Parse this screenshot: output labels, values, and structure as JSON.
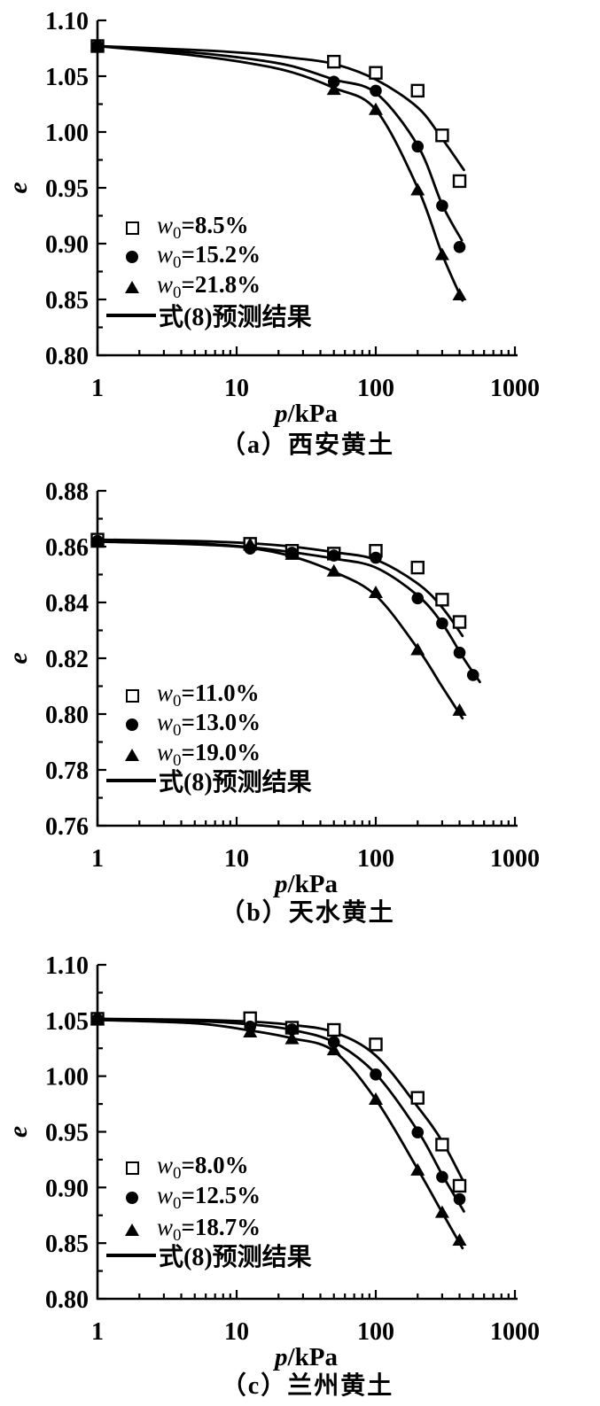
{
  "colors": {
    "ink": "#000000",
    "background": "#ffffff"
  },
  "chart_data": [
    {
      "id": "a",
      "type": "line",
      "caption": "（a）西安黄土",
      "xlabel": {
        "italic": "p",
        "rest": "/kPa"
      },
      "ylabel": "e",
      "x_axis": {
        "scale": "log",
        "min": 1,
        "max": 1000,
        "major_ticks": [
          1,
          10,
          100,
          1000
        ],
        "tick_labels": [
          "1",
          "10",
          "100",
          "1000"
        ]
      },
      "y_axis": {
        "min": 0.8,
        "max": 1.1,
        "major_step": 0.05,
        "minor_step": 0.025,
        "tick_labels": [
          "0.80",
          "0.85",
          "0.90",
          "0.95",
          "1.00",
          "1.05",
          "1.10"
        ]
      },
      "series": [
        {
          "name": "w0=8.5%",
          "marker": "square-open",
          "points": [
            [
              1,
              1.077
            ],
            [
              50,
              1.063
            ],
            [
              100,
              1.053
            ],
            [
              200,
              1.037
            ],
            [
              300,
              0.997
            ],
            [
              400,
              0.956
            ]
          ]
        },
        {
          "name": "w0=15.2%",
          "marker": "circle-filled",
          "points": [
            [
              1,
              1.077
            ],
            [
              50,
              1.045
            ],
            [
              100,
              1.037
            ],
            [
              200,
              0.987
            ],
            [
              300,
              0.934
            ],
            [
              400,
              0.897
            ]
          ]
        },
        {
          "name": "w0=21.8%",
          "marker": "triangle-filled",
          "points": [
            [
              1,
              1.077
            ],
            [
              50,
              1.038
            ],
            [
              100,
              1.02
            ],
            [
              200,
              0.948
            ],
            [
              300,
              0.89
            ],
            [
              400,
              0.854
            ]
          ]
        }
      ],
      "fit_label": "式(8)预测结果",
      "fit_curves": [
        [
          [
            1,
            1.077
          ],
          [
            5,
            1.0735
          ],
          [
            12.5,
            1.0705
          ],
          [
            25,
            1.0665
          ],
          [
            50,
            1.061
          ],
          [
            100,
            1.047
          ],
          [
            200,
            1.022
          ],
          [
            300,
            0.994
          ],
          [
            430,
            0.966
          ]
        ],
        [
          [
            1,
            1.077
          ],
          [
            5,
            1.071
          ],
          [
            12.5,
            1.0655
          ],
          [
            25,
            1.059
          ],
          [
            50,
            1.047
          ],
          [
            100,
            1.035
          ],
          [
            200,
            0.988
          ],
          [
            300,
            0.935
          ],
          [
            415,
            0.903
          ]
        ],
        [
          [
            1,
            1.077
          ],
          [
            5,
            1.0685
          ],
          [
            12.5,
            1.0615
          ],
          [
            25,
            1.0535
          ],
          [
            50,
            1.0395
          ],
          [
            100,
            1.02
          ],
          [
            200,
            0.95
          ],
          [
            300,
            0.8905
          ],
          [
            420,
            0.849
          ]
        ]
      ],
      "legend": {
        "items": [
          {
            "marker": "square-open",
            "var": "w",
            "sub": "0",
            "value": "=8.5%"
          },
          {
            "marker": "circle-filled",
            "var": "w",
            "sub": "0",
            "value": "=15.2%"
          },
          {
            "marker": "triangle-filled",
            "var": "w",
            "sub": "0",
            "value": "=21.8%"
          },
          {
            "marker": "line",
            "label": "式(8)预测结果"
          }
        ]
      }
    },
    {
      "id": "b",
      "type": "line",
      "caption": "（b）天水黄土",
      "xlabel": {
        "italic": "p",
        "rest": "/kPa"
      },
      "ylabel": "e",
      "x_axis": {
        "scale": "log",
        "min": 1,
        "max": 1000,
        "major_ticks": [
          1,
          10,
          100,
          1000
        ],
        "tick_labels": [
          "1",
          "10",
          "100",
          "1000"
        ]
      },
      "y_axis": {
        "min": 0.76,
        "max": 0.88,
        "major_step": 0.02,
        "minor_step": 0.01,
        "tick_labels": [
          "0.76",
          "0.78",
          "0.80",
          "0.82",
          "0.84",
          "0.86",
          "0.88"
        ]
      },
      "series": [
        {
          "name": "w0=11.0%",
          "marker": "square-open",
          "points": [
            [
              1,
              0.8625
            ],
            [
              12.5,
              0.861
            ],
            [
              25,
              0.8585
            ],
            [
              50,
              0.8575
            ],
            [
              100,
              0.8585
            ],
            [
              200,
              0.8525
            ],
            [
              300,
              0.841
            ],
            [
              400,
              0.833
            ]
          ]
        },
        {
          "name": "w0=13.0%",
          "marker": "circle-filled",
          "points": [
            [
              1,
              0.862
            ],
            [
              12.5,
              0.8593
            ],
            [
              25,
              0.8578
            ],
            [
              50,
              0.8568
            ],
            [
              100,
              0.856
            ],
            [
              200,
              0.8415
            ],
            [
              300,
              0.8325
            ],
            [
              400,
              0.822
            ],
            [
              500,
              0.814
            ]
          ]
        },
        {
          "name": "w0=19.0%",
          "marker": "triangle-filled",
          "points": [
            [
              1,
              0.8615
            ],
            [
              12.5,
              0.8608
            ],
            [
              25,
              0.8572
            ],
            [
              50,
              0.8512
            ],
            [
              100,
              0.8435
            ],
            [
              200,
              0.823
            ],
            [
              400,
              0.8013
            ]
          ]
        }
      ],
      "fit_label": "式(8)预测结果",
      "fit_curves": [
        [
          [
            1,
            0.8625
          ],
          [
            5,
            0.862
          ],
          [
            12.5,
            0.8612
          ],
          [
            25,
            0.86
          ],
          [
            50,
            0.858
          ],
          [
            100,
            0.8553
          ],
          [
            200,
            0.8468
          ],
          [
            300,
            0.8382
          ],
          [
            420,
            0.828
          ]
        ],
        [
          [
            1,
            0.8622
          ],
          [
            5,
            0.8612
          ],
          [
            12.5,
            0.8598
          ],
          [
            25,
            0.858
          ],
          [
            50,
            0.8557
          ],
          [
            100,
            0.8525
          ],
          [
            200,
            0.8425
          ],
          [
            300,
            0.8325
          ],
          [
            430,
            0.8198
          ],
          [
            560,
            0.8115
          ]
        ],
        [
          [
            1,
            0.8618
          ],
          [
            5,
            0.8608
          ],
          [
            12.5,
            0.8595
          ],
          [
            25,
            0.8565
          ],
          [
            50,
            0.851
          ],
          [
            100,
            0.8425
          ],
          [
            200,
            0.8235
          ],
          [
            300,
            0.8098
          ],
          [
            420,
            0.7985
          ]
        ]
      ],
      "legend": {
        "items": [
          {
            "marker": "square-open",
            "var": "w",
            "sub": "0",
            "value": "=11.0%"
          },
          {
            "marker": "circle-filled",
            "var": "w",
            "sub": "0",
            "value": "=13.0%"
          },
          {
            "marker": "triangle-filled",
            "var": "w",
            "sub": "0",
            "value": "=19.0%"
          },
          {
            "marker": "line",
            "label": "式(8)预测结果"
          }
        ]
      }
    },
    {
      "id": "c",
      "type": "line",
      "caption": "（c）兰州黄土",
      "xlabel": {
        "italic": "p",
        "rest": "/kPa"
      },
      "ylabel": "e",
      "x_axis": {
        "scale": "log",
        "min": 1,
        "max": 1000,
        "major_ticks": [
          1,
          10,
          100,
          1000
        ],
        "tick_labels": [
          "1",
          "10",
          "100",
          "1000"
        ]
      },
      "y_axis": {
        "min": 0.8,
        "max": 1.1,
        "major_step": 0.05,
        "minor_step": 0.025,
        "tick_labels": [
          "0.80",
          "0.85",
          "0.90",
          "0.95",
          "1.00",
          "1.05",
          "1.10"
        ]
      },
      "series": [
        {
          "name": "w0=8.0%",
          "marker": "square-open",
          "points": [
            [
              1,
              1.0515
            ],
            [
              12.5,
              1.052
            ],
            [
              25,
              1.0435
            ],
            [
              50,
              1.0415
            ],
            [
              100,
              1.0285
            ],
            [
              200,
              0.9805
            ],
            [
              300,
              0.9385
            ],
            [
              400,
              0.9015
            ]
          ]
        },
        {
          "name": "w0=12.5%",
          "marker": "circle-filled",
          "points": [
            [
              1,
              1.051
            ],
            [
              12.5,
              1.0445
            ],
            [
              25,
              1.042
            ],
            [
              50,
              1.0305
            ],
            [
              100,
              1.0015
            ],
            [
              200,
              0.9495
            ],
            [
              300,
              0.9095
            ],
            [
              400,
              0.8895
            ]
          ]
        },
        {
          "name": "w0=18.7%",
          "marker": "triangle-filled",
          "points": [
            [
              1,
              1.0505
            ],
            [
              12.5,
              1.0395
            ],
            [
              25,
              1.0335
            ],
            [
              50,
              1.0235
            ],
            [
              100,
              0.979
            ],
            [
              200,
              0.9155
            ],
            [
              300,
              0.8775
            ],
            [
              400,
              0.8525
            ]
          ]
        }
      ],
      "fit_label": "式(8)预测结果",
      "fit_curves": [
        [
          [
            1,
            1.0515
          ],
          [
            5,
            1.0505
          ],
          [
            12.5,
            1.049
          ],
          [
            25,
            1.046
          ],
          [
            50,
            1.0395
          ],
          [
            100,
            1.0185
          ],
          [
            200,
            0.9725
          ],
          [
            300,
            0.9415
          ],
          [
            430,
            0.9045
          ]
        ],
        [
          [
            1,
            1.051
          ],
          [
            5,
            1.0495
          ],
          [
            12.5,
            1.0465
          ],
          [
            25,
            1.0415
          ],
          [
            50,
            1.0305
          ],
          [
            100,
            1.002
          ],
          [
            200,
            0.951
          ],
          [
            300,
            0.9115
          ],
          [
            430,
            0.8785
          ]
        ],
        [
          [
            1,
            1.0505
          ],
          [
            5,
            1.0475
          ],
          [
            12.5,
            1.041
          ],
          [
            25,
            1.034
          ],
          [
            50,
            1.0225
          ],
          [
            100,
            0.979
          ],
          [
            200,
            0.9165
          ],
          [
            300,
            0.8775
          ],
          [
            420,
            0.8455
          ]
        ]
      ],
      "legend": {
        "items": [
          {
            "marker": "square-open",
            "var": "w",
            "sub": "0",
            "value": "=8.0%"
          },
          {
            "marker": "circle-filled",
            "var": "w",
            "sub": "0",
            "value": "=12.5%"
          },
          {
            "marker": "triangle-filled",
            "var": "w",
            "sub": "0",
            "value": "=18.7%"
          },
          {
            "marker": "line",
            "label": "式(8)预测结果"
          }
        ]
      }
    }
  ]
}
